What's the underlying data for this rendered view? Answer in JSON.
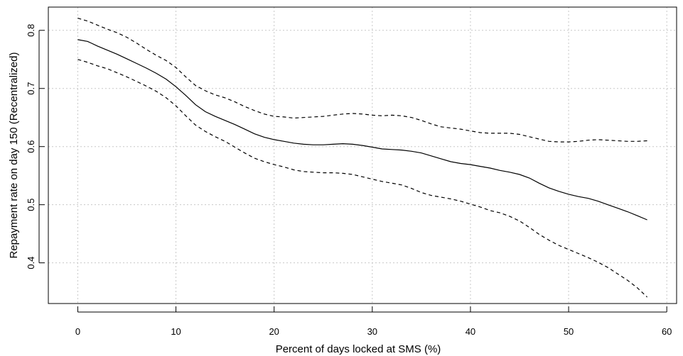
{
  "chart_data": {
    "type": "line",
    "title": "",
    "xlabel": "Percent of days locked at SMS (%)",
    "ylabel": "Repayment rate on day 150 (Recentralized)",
    "xlim": [
      -3,
      61
    ],
    "ylim": [
      0.33,
      0.84
    ],
    "xticks": [
      0,
      10,
      20,
      30,
      40,
      50,
      60
    ],
    "yticks": [
      0.4,
      0.5,
      0.6,
      0.7,
      0.8
    ],
    "xtick_labels": [
      "0",
      "10",
      "20",
      "30",
      "40",
      "50",
      "60"
    ],
    "ytick_labels": [
      "0.4",
      "0.5",
      "0.6",
      "0.7",
      "0.8"
    ],
    "grid": true,
    "series": [
      {
        "style": "solid",
        "x": [
          0,
          1,
          2,
          3,
          4,
          5,
          6,
          7,
          8,
          9,
          10,
          11,
          12,
          13,
          14,
          15,
          16,
          17,
          18,
          19,
          20,
          21,
          22,
          23,
          24,
          25,
          26,
          27,
          28,
          29,
          30,
          31,
          32,
          33,
          34,
          35,
          36,
          37,
          38,
          39,
          40,
          41,
          42,
          43,
          44,
          45,
          46,
          47,
          48,
          49,
          50,
          51,
          52,
          53,
          54,
          55,
          56,
          57,
          58
        ],
        "values": [
          0.784,
          0.781,
          0.773,
          0.766,
          0.759,
          0.751,
          0.743,
          0.735,
          0.726,
          0.716,
          0.703,
          0.688,
          0.672,
          0.66,
          0.652,
          0.645,
          0.638,
          0.63,
          0.622,
          0.616,
          0.612,
          0.609,
          0.606,
          0.604,
          0.603,
          0.603,
          0.604,
          0.605,
          0.604,
          0.602,
          0.599,
          0.596,
          0.595,
          0.594,
          0.592,
          0.589,
          0.584,
          0.579,
          0.574,
          0.571,
          0.569,
          0.566,
          0.563,
          0.559,
          0.556,
          0.552,
          0.546,
          0.537,
          0.529,
          0.523,
          0.518,
          0.514,
          0.511,
          0.506,
          0.5,
          0.494,
          0.488,
          0.481,
          0.474
        ]
      },
      {
        "style": "dashed",
        "x": [
          0,
          1,
          2,
          3,
          4,
          5,
          6,
          7,
          8,
          9,
          10,
          11,
          12,
          13,
          14,
          15,
          16,
          17,
          18,
          19,
          20,
          21,
          22,
          23,
          24,
          25,
          26,
          27,
          28,
          29,
          30,
          31,
          32,
          33,
          34,
          35,
          36,
          37,
          38,
          39,
          40,
          41,
          42,
          43,
          44,
          45,
          46,
          47,
          48,
          49,
          50,
          51,
          52,
          53,
          54,
          55,
          56,
          57,
          58
        ],
        "values": [
          0.821,
          0.816,
          0.809,
          0.802,
          0.796,
          0.788,
          0.778,
          0.767,
          0.757,
          0.748,
          0.736,
          0.72,
          0.705,
          0.696,
          0.689,
          0.684,
          0.677,
          0.669,
          0.662,
          0.656,
          0.652,
          0.651,
          0.649,
          0.65,
          0.651,
          0.652,
          0.654,
          0.656,
          0.657,
          0.656,
          0.654,
          0.653,
          0.654,
          0.653,
          0.65,
          0.645,
          0.639,
          0.634,
          0.632,
          0.63,
          0.627,
          0.624,
          0.623,
          0.623,
          0.623,
          0.621,
          0.617,
          0.613,
          0.609,
          0.608,
          0.608,
          0.609,
          0.611,
          0.612,
          0.611,
          0.61,
          0.609,
          0.609,
          0.61
        ]
      },
      {
        "style": "dashed",
        "x": [
          0,
          1,
          2,
          3,
          4,
          5,
          6,
          7,
          8,
          9,
          10,
          11,
          12,
          13,
          14,
          15,
          16,
          17,
          18,
          19,
          20,
          21,
          22,
          23,
          24,
          25,
          26,
          27,
          28,
          29,
          30,
          31,
          32,
          33,
          34,
          35,
          36,
          37,
          38,
          39,
          40,
          41,
          42,
          43,
          44,
          45,
          46,
          47,
          48,
          49,
          50,
          51,
          52,
          53,
          54,
          55,
          56,
          57,
          58
        ],
        "values": [
          0.75,
          0.745,
          0.739,
          0.734,
          0.727,
          0.72,
          0.712,
          0.704,
          0.695,
          0.684,
          0.67,
          0.653,
          0.637,
          0.626,
          0.617,
          0.609,
          0.599,
          0.589,
          0.58,
          0.574,
          0.569,
          0.565,
          0.56,
          0.557,
          0.556,
          0.555,
          0.555,
          0.554,
          0.552,
          0.548,
          0.544,
          0.54,
          0.537,
          0.534,
          0.528,
          0.521,
          0.516,
          0.513,
          0.51,
          0.506,
          0.501,
          0.496,
          0.49,
          0.486,
          0.48,
          0.472,
          0.461,
          0.449,
          0.439,
          0.43,
          0.423,
          0.416,
          0.409,
          0.401,
          0.392,
          0.381,
          0.37,
          0.357,
          0.341
        ]
      }
    ]
  }
}
